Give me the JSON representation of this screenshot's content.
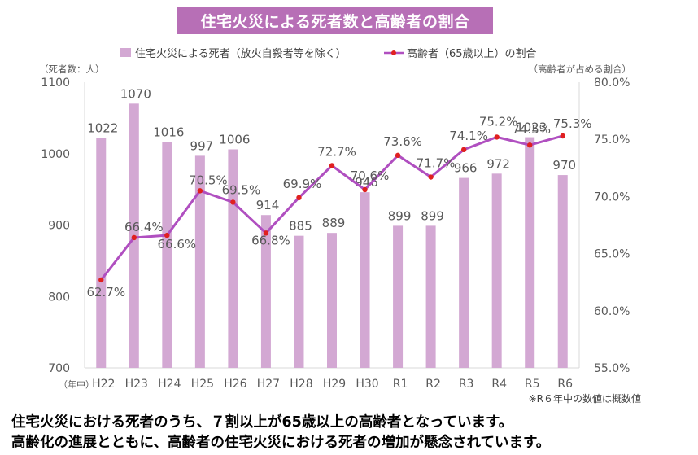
{
  "chart_data": {
    "type": "bar+line",
    "title": "住宅火災による死者数と高齢者の割合",
    "categories": [
      "H22",
      "H23",
      "H24",
      "H25",
      "H26",
      "H27",
      "H28",
      "H29",
      "H30",
      "R1",
      "R2",
      "R3",
      "R4",
      "R5",
      "R6"
    ],
    "x_axis_prefix": "（年中）",
    "series": [
      {
        "name": "住宅火災による死者（放火自殺者等を除く）",
        "type": "bar",
        "axis": "left",
        "color": "#d3a8d3",
        "values": [
          1022,
          1070,
          1016,
          997,
          1006,
          914,
          885,
          889,
          946,
          899,
          899,
          966,
          972,
          1023,
          970
        ],
        "labels": [
          "1022",
          "1070",
          "1016",
          "997",
          "1006",
          "914",
          "885",
          "889",
          "946",
          "899",
          "899",
          "966",
          "972",
          "1023",
          "970"
        ]
      },
      {
        "name": "高齢者（65歳以上）の割合",
        "type": "line",
        "axis": "right",
        "color": "#b04fc0",
        "marker_color": "#e02020",
        "values": [
          62.7,
          66.4,
          66.6,
          70.5,
          69.5,
          66.8,
          69.9,
          72.7,
          70.6,
          73.6,
          71.7,
          74.1,
          75.2,
          74.5,
          75.3
        ],
        "labels": [
          "62.7%",
          "66.4%",
          "66.6%",
          "70.5%",
          "69.5%",
          "66.8%",
          "69.9%",
          "72.7%",
          "70.6%",
          "73.6%",
          "71.7%",
          "74.1%",
          "75.2%",
          "74.5%",
          "75.3%"
        ]
      }
    ],
    "y_left": {
      "label": "（死者数：人）",
      "min": 700,
      "max": 1100,
      "ticks": [
        700,
        800,
        900,
        1000,
        1100
      ],
      "tick_labels": [
        "700",
        "800",
        "900",
        "1000",
        "1100"
      ]
    },
    "y_right": {
      "label": "（高齢者が占める割合）",
      "min": 55,
      "max": 80,
      "ticks": [
        55,
        60,
        65,
        70,
        75,
        80
      ],
      "tick_labels": [
        "55.0%",
        "60.0%",
        "65.0%",
        "70.0%",
        "75.0%",
        "80.0%"
      ]
    },
    "footnote": "※R６年中の数値は概数値",
    "legend_position": "top"
  },
  "captions": [
    "住宅火災における死者のうち、７割以上が65歳以上の高齢者となっています。",
    "高齢化の進展とともに、高齢者の住宅火災における死者の増加が懸念されています。"
  ]
}
